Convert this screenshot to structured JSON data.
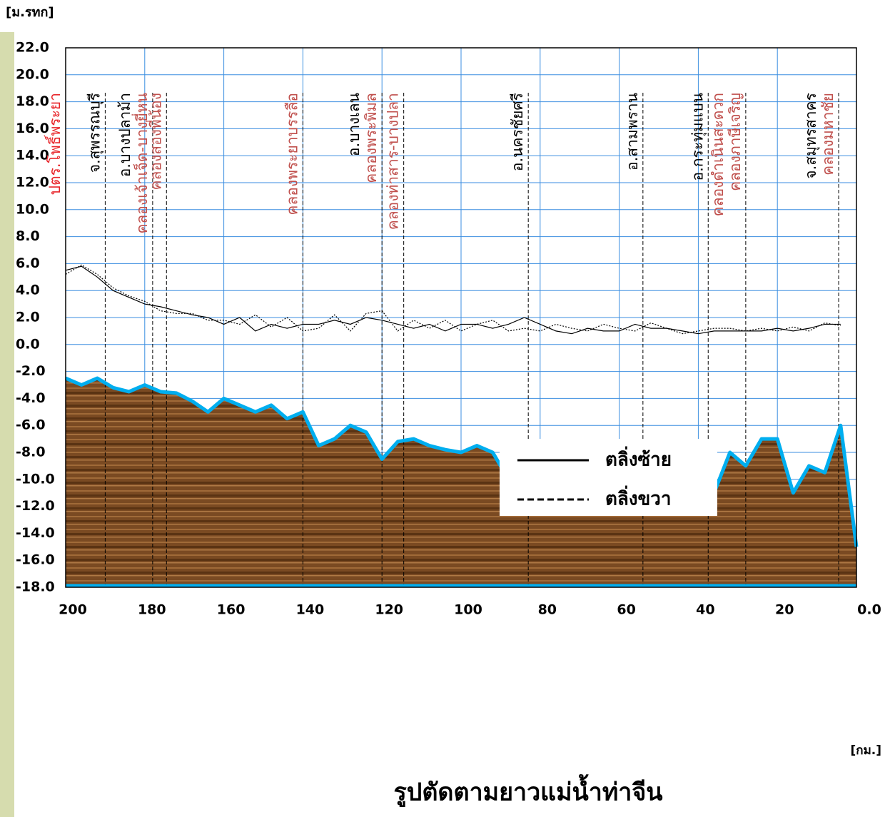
{
  "chart_data": {
    "type": "line",
    "title": "รูปตัดตามยาวแม่น้ำท่าจีน",
    "y_label": "[ม.รทก]",
    "x_label": "[กม.]",
    "xlim": [
      200,
      0
    ],
    "ylim": [
      -18,
      22
    ],
    "xticks": [
      200,
      180,
      160,
      140,
      120,
      100,
      80,
      60,
      40,
      20,
      {
        "value": 0,
        "label": "0.0"
      }
    ],
    "yticks": [
      {
        "value": 22,
        "label": "22.0"
      },
      {
        "value": 20,
        "label": "20.0"
      },
      {
        "value": 18,
        "label": "18.0"
      },
      {
        "value": 16,
        "label": "16.0"
      },
      {
        "value": 14,
        "label": "14.0"
      },
      {
        "value": 12,
        "label": "12.0"
      },
      {
        "value": 10,
        "label": "10.0"
      },
      {
        "value": 8,
        "label": "8.0"
      },
      {
        "value": 6,
        "label": "6.0"
      },
      {
        "value": 4,
        "label": "4.0"
      },
      {
        "value": 2,
        "label": "2.0"
      },
      {
        "value": 0,
        "label": "0.0"
      },
      {
        "value": -2,
        "label": "-2.0"
      },
      {
        "value": -4,
        "label": "-4.0"
      },
      {
        "value": -6,
        "label": "-6.0"
      },
      {
        "value": -8,
        "label": "-8.0"
      },
      {
        "value": -10,
        "label": "-10.0"
      },
      {
        "value": -12,
        "label": "-12.0"
      },
      {
        "value": -14,
        "label": "-14.0"
      },
      {
        "value": -16,
        "label": "-16.0"
      },
      {
        "value": -18,
        "label": "-18.0"
      }
    ],
    "grid": true,
    "x": [
      200,
      196,
      192,
      188,
      184,
      180,
      176,
      172,
      168,
      164,
      160,
      156,
      152,
      148,
      144,
      140,
      136,
      132,
      128,
      124,
      120,
      116,
      112,
      108,
      104,
      100,
      96,
      92,
      88,
      84,
      80,
      76,
      72,
      68,
      64,
      60,
      56,
      52,
      48,
      44,
      40,
      36,
      32,
      28,
      24,
      20,
      16,
      12,
      8,
      4,
      0
    ],
    "series": [
      {
        "name": "ตลิ่งซ้าย",
        "color": "#000000",
        "line_style": "solid",
        "values": [
          5.5,
          5.8,
          5.0,
          4.0,
          3.5,
          3.0,
          2.8,
          2.5,
          2.2,
          2.0,
          1.5,
          2.0,
          1.0,
          1.5,
          1.2,
          1.5,
          1.5,
          1.8,
          1.5,
          2.0,
          1.8,
          1.5,
          1.2,
          1.5,
          1.0,
          1.5,
          1.5,
          1.2,
          1.5,
          2.0,
          1.5,
          1.0,
          0.8,
          1.2,
          1.0,
          1.0,
          1.5,
          1.2,
          1.2,
          1.0,
          0.8,
          1.0,
          1.0,
          1.0,
          1.0,
          1.2,
          1.0,
          1.2,
          1.5,
          1.5,
          null
        ]
      },
      {
        "name": "ตลิ่งขวา",
        "color": "#000000",
        "line_style": "dashed",
        "values": [
          5.2,
          5.9,
          5.2,
          4.2,
          3.6,
          3.2,
          2.5,
          2.3,
          2.3,
          1.8,
          1.8,
          1.5,
          2.2,
          1.3,
          2.0,
          1.0,
          1.2,
          2.2,
          1.0,
          2.3,
          2.5,
          1.0,
          1.8,
          1.2,
          1.8,
          1.0,
          1.5,
          1.8,
          1.0,
          1.2,
          1.0,
          1.5,
          1.2,
          1.0,
          1.5,
          1.2,
          1.0,
          1.6,
          1.2,
          0.8,
          1.0,
          1.2,
          1.2,
          1.0,
          1.2,
          1.0,
          1.3,
          1.0,
          1.6,
          1.4,
          null
        ]
      }
    ],
    "riverbed": {
      "color": "#00aeef",
      "values": [
        -2.5,
        -3.0,
        -2.5,
        -3.2,
        -3.5,
        -3.0,
        -3.5,
        -3.6,
        -4.2,
        -5.0,
        -4.0,
        -4.5,
        -5.0,
        -4.5,
        -5.5,
        -5.0,
        -7.5,
        -7.0,
        -6.0,
        -6.5,
        -8.5,
        -7.2,
        -7.0,
        -7.5,
        -7.8,
        -8.0,
        -7.5,
        -8.0,
        -10.0,
        -9.0,
        -8.5,
        -9.5,
        -10.0,
        -9.0,
        -8.5,
        -9.0,
        -10.5,
        -8.0,
        -9.0,
        -10.5,
        -9.5,
        -11.0,
        -8.0,
        -9.0,
        -7.0,
        -7.0,
        -11.0,
        -9.0,
        -9.5,
        -6.0,
        -15.0
      ]
    },
    "legend_position": "right",
    "markers": [
      {
        "x": 200,
        "labels": [
          {
            "text": "ปตร.โพธิ์พระยา",
            "color": "#e8262b"
          }
        ]
      },
      {
        "x": 190,
        "labels": [
          {
            "text": "จ.สุพรรณบุรี",
            "color": "#000000"
          }
        ]
      },
      {
        "x": 178,
        "labels": [
          {
            "text": "คลองเจ้าเจ็ด-บางยี่หน",
            "color": "#c0504d"
          },
          {
            "text": "อ.บางปลาม้า",
            "color": "#000000"
          }
        ]
      },
      {
        "x": 174.5,
        "labels": [
          {
            "text": "คลองสองพี่น้อง",
            "color": "#c0504d"
          }
        ]
      },
      {
        "x": 140,
        "labels": [
          {
            "text": "คลองพระยาบรรลือ",
            "color": "#c0504d"
          }
        ]
      },
      {
        "x": 120,
        "labels": [
          {
            "text": "คลองพระพิมล",
            "color": "#c0504d"
          },
          {
            "text": "อ.บางเลน",
            "color": "#000000"
          }
        ]
      },
      {
        "x": 114.5,
        "labels": [
          {
            "text": "คลองท่าสาร-บางปลา",
            "color": "#c0504d"
          }
        ]
      },
      {
        "x": 83,
        "labels": [
          {
            "text": "อ.นครชัยศรี",
            "color": "#000000"
          }
        ]
      },
      {
        "x": 54,
        "labels": [
          {
            "text": "อ.สามพราน",
            "color": "#000000"
          }
        ]
      },
      {
        "x": 37.5,
        "labels": [
          {
            "text": "อ.กระทุ่มแบน",
            "color": "#000000"
          }
        ]
      },
      {
        "x": 28,
        "labels": [
          {
            "text": "คลองภาษีเจริญ",
            "color": "#c0504d"
          },
          {
            "text": "คลองดำเนินสะดวก",
            "color": "#c0504d"
          }
        ]
      },
      {
        "x": 4.5,
        "labels": [
          {
            "text": "คลองมหาชัย",
            "color": "#c0504d"
          },
          {
            "text": "จ.สมุทรสาคร",
            "color": "#000000"
          }
        ]
      }
    ]
  }
}
